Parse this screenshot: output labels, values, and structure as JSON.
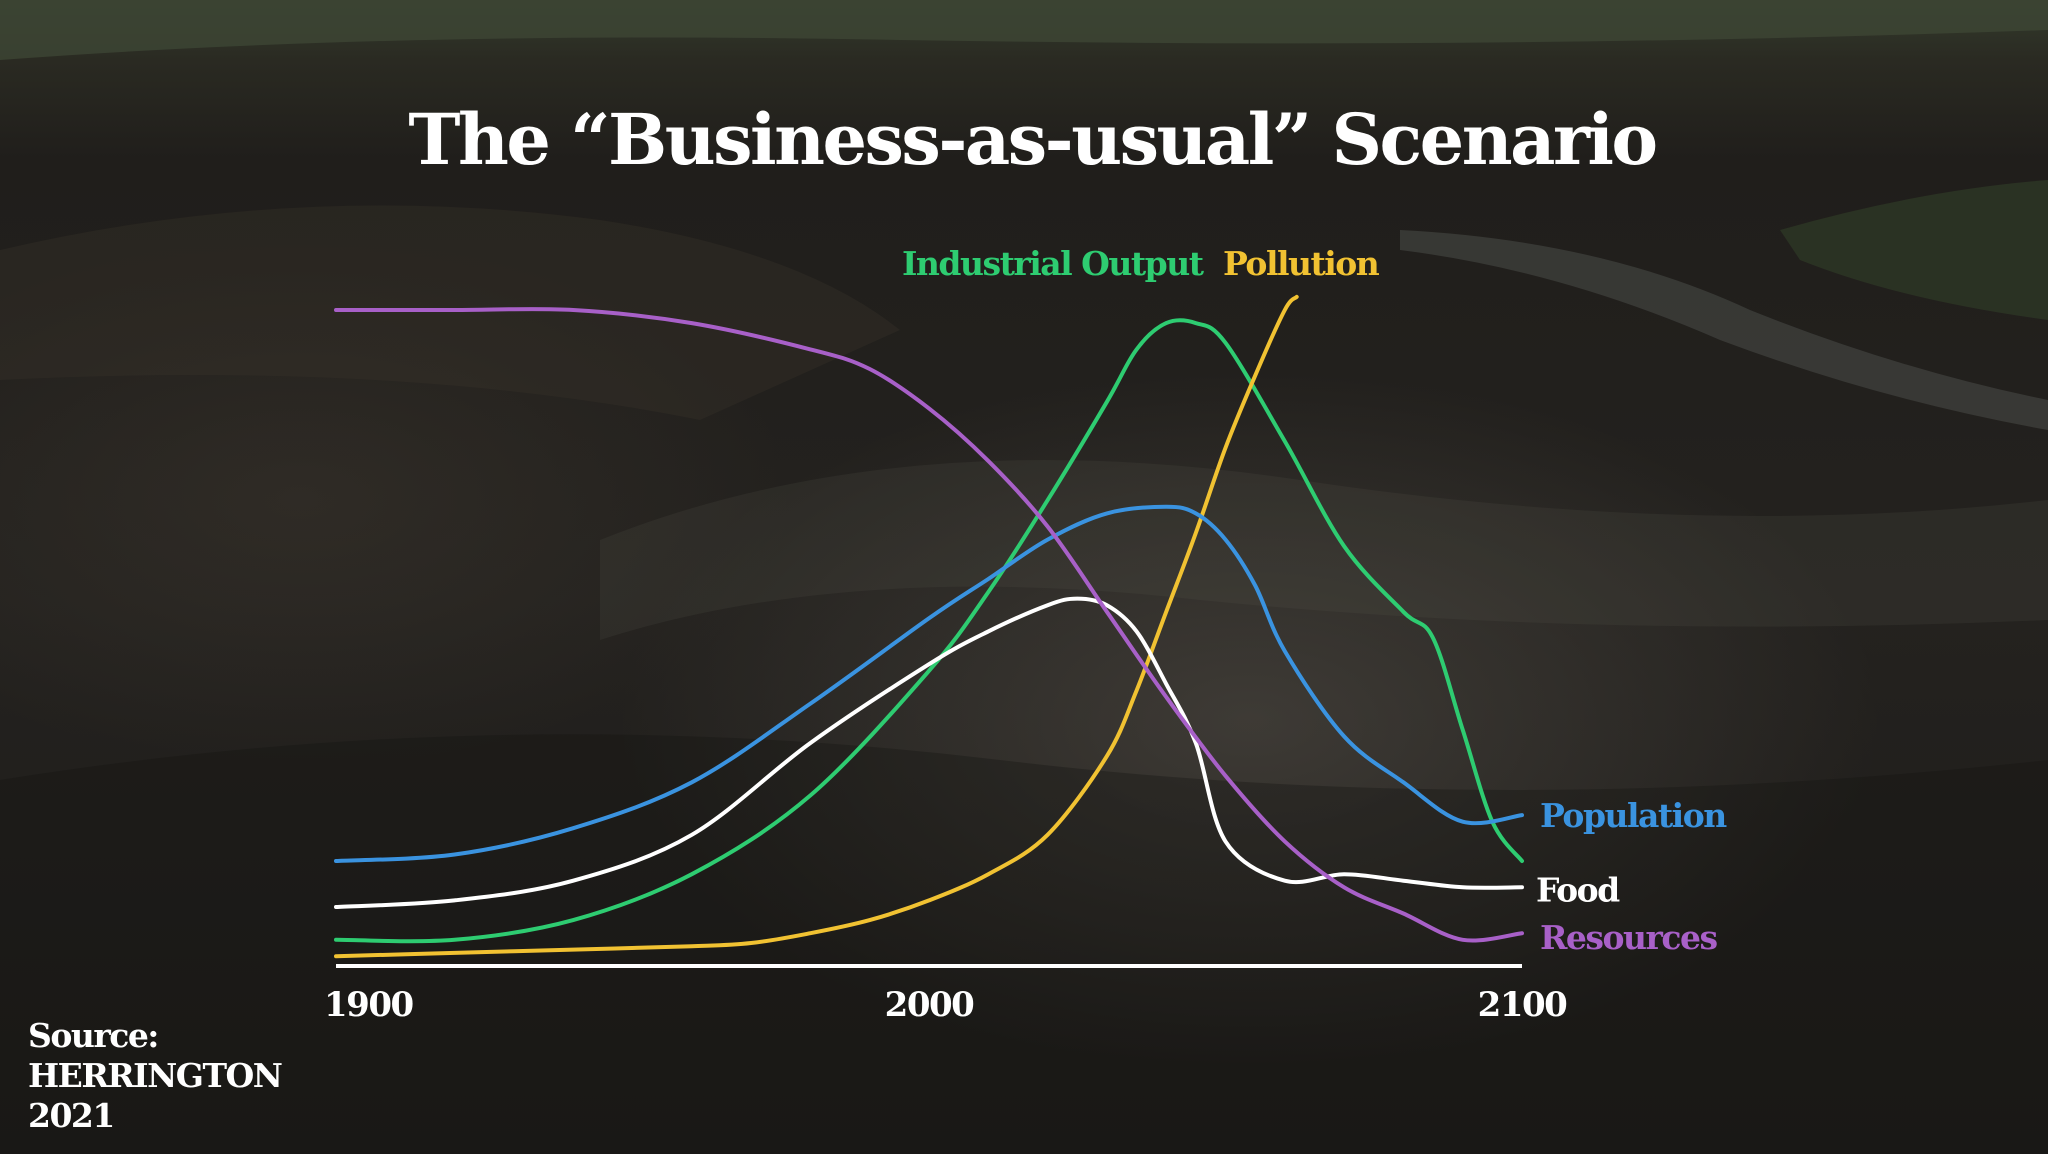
{
  "title": "The “Business-as-usual” Scenario",
  "source": {
    "line1": "Source:",
    "line2": "HERRINGTON",
    "line3": "2021"
  },
  "chart_data": {
    "type": "line",
    "title": "The “Business-as-usual” Scenario",
    "xlabel": "",
    "ylabel": "",
    "xlim": [
      1900,
      2100
    ],
    "ylim": [
      0,
      1
    ],
    "xticks": [
      1900,
      2000,
      2100
    ],
    "y_axis_labeled": false,
    "grid": false,
    "legend": "inline labels at line ends",
    "series": [
      {
        "name": "Industrial Output",
        "color": "#2ecc71",
        "label_pos": "top",
        "x": [
          1900,
          1920,
          1940,
          1960,
          1980,
          2000,
          2010,
          2020,
          2030,
          2035,
          2040,
          2045,
          2050,
          2060,
          2070,
          2080,
          2085,
          2090,
          2095,
          2100
        ],
        "y": [
          0.04,
          0.04,
          0.07,
          0.14,
          0.26,
          0.45,
          0.57,
          0.71,
          0.86,
          0.94,
          0.98,
          0.98,
          0.95,
          0.8,
          0.64,
          0.54,
          0.5,
          0.36,
          0.22,
          0.16
        ]
      },
      {
        "name": "Pollution",
        "color": "#f1c232",
        "label_pos": "top",
        "x": [
          1900,
          1920,
          1940,
          1960,
          1970,
          1980,
          1990,
          2000,
          2010,
          2020,
          2030,
          2035,
          2040,
          2045,
          2050,
          2055,
          2060,
          2062
        ],
        "y": [
          0.015,
          0.02,
          0.025,
          0.03,
          0.035,
          0.05,
          0.07,
          0.1,
          0.14,
          0.2,
          0.32,
          0.42,
          0.54,
          0.66,
          0.79,
          0.9,
          1.0,
          1.02
        ]
      },
      {
        "name": "Population",
        "color": "#3a93e0",
        "label_pos": "end",
        "x": [
          1900,
          1920,
          1940,
          1960,
          1980,
          2000,
          2010,
          2020,
          2030,
          2040,
          2045,
          2050,
          2055,
          2060,
          2070,
          2080,
          2090,
          2100
        ],
        "y": [
          0.16,
          0.17,
          0.21,
          0.28,
          0.4,
          0.53,
          0.59,
          0.65,
          0.69,
          0.7,
          0.69,
          0.65,
          0.58,
          0.48,
          0.35,
          0.28,
          0.22,
          0.23
        ]
      },
      {
        "name": "Food",
        "color": "#ffffff",
        "label_pos": "end",
        "x": [
          1900,
          1920,
          1940,
          1960,
          1980,
          2000,
          2010,
          2020,
          2025,
          2030,
          2035,
          2040,
          2045,
          2050,
          2060,
          2070,
          2080,
          2090,
          2100
        ],
        "y": [
          0.09,
          0.1,
          0.13,
          0.2,
          0.34,
          0.46,
          0.51,
          0.55,
          0.56,
          0.55,
          0.51,
          0.43,
          0.34,
          0.19,
          0.13,
          0.14,
          0.13,
          0.12,
          0.12
        ]
      },
      {
        "name": "Resources",
        "color": "#a860c8",
        "label_pos": "end",
        "x": [
          1900,
          1920,
          1940,
          1960,
          1980,
          1990,
          2000,
          2010,
          2020,
          2030,
          2040,
          2050,
          2060,
          2070,
          2080,
          2090,
          2100
        ],
        "y": [
          1.0,
          1.0,
          1.0,
          0.98,
          0.94,
          0.91,
          0.85,
          0.77,
          0.67,
          0.54,
          0.41,
          0.29,
          0.19,
          0.12,
          0.08,
          0.04,
          0.05
        ]
      }
    ]
  }
}
